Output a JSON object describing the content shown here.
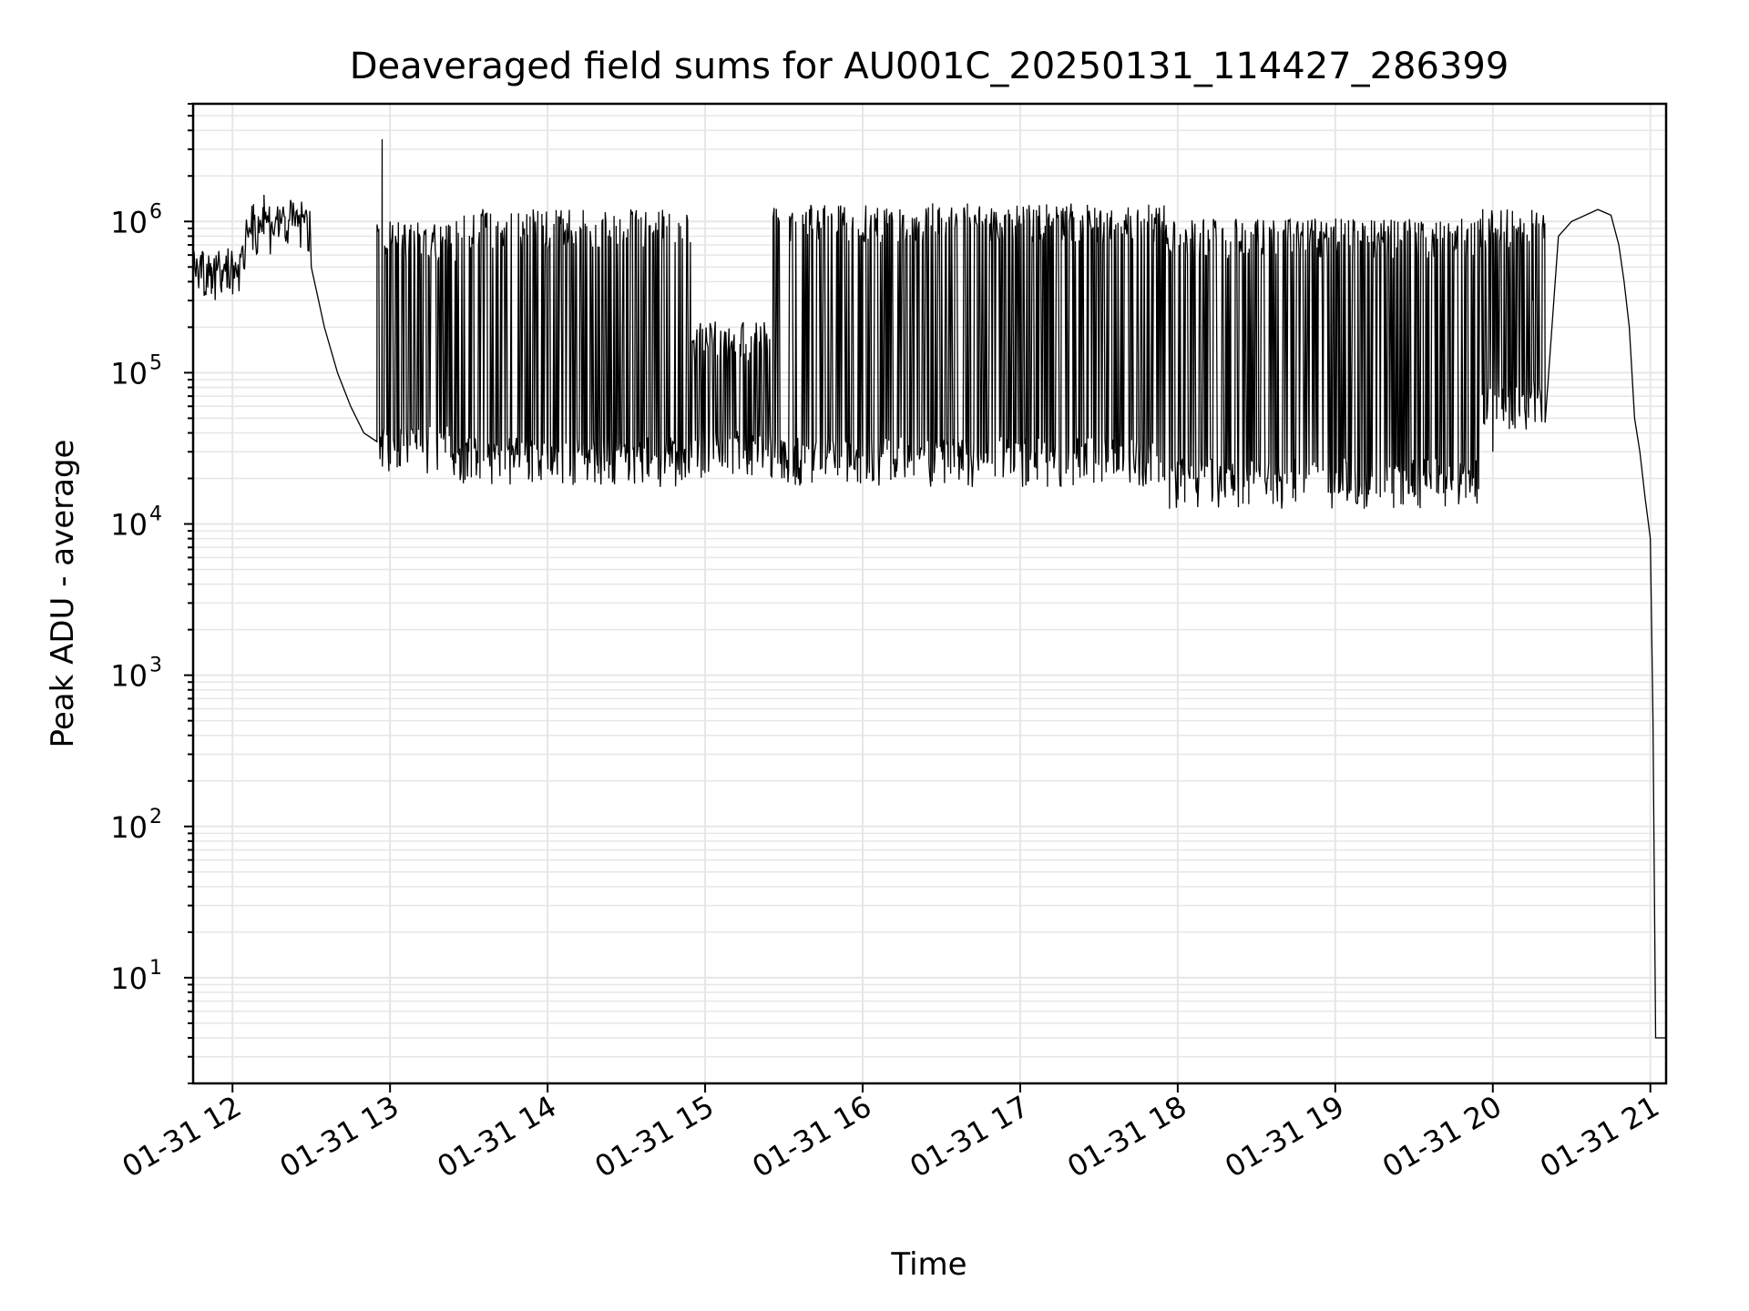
{
  "chart_data": {
    "type": "line",
    "title": "Deaveraged field sums for AU001C_20250131_114427_286399",
    "xlabel": "Time",
    "ylabel": "Peak ADU - average",
    "yscale": "log",
    "ylim": [
      2,
      6000000
    ],
    "xlim": [
      "2025-01-31 11:45",
      "2025-01-31 21:06"
    ],
    "x_ticks": [
      {
        "t": "2025-01-31 12:00",
        "label": "01-31 12"
      },
      {
        "t": "2025-01-31 13:00",
        "label": "01-31 13"
      },
      {
        "t": "2025-01-31 14:00",
        "label": "01-31 14"
      },
      {
        "t": "2025-01-31 15:00",
        "label": "01-31 15"
      },
      {
        "t": "2025-01-31 16:00",
        "label": "01-31 16"
      },
      {
        "t": "2025-01-31 17:00",
        "label": "01-31 17"
      },
      {
        "t": "2025-01-31 18:00",
        "label": "01-31 18"
      },
      {
        "t": "2025-01-31 19:00",
        "label": "01-31 19"
      },
      {
        "t": "2025-01-31 20:00",
        "label": "01-31 20"
      },
      {
        "t": "2025-01-31 21:00",
        "label": "01-31 21"
      }
    ],
    "y_ticks": [
      {
        "v": 10,
        "base": "10",
        "exp": "1"
      },
      {
        "v": 100,
        "base": "10",
        "exp": "2"
      },
      {
        "v": 1000,
        "base": "10",
        "exp": "3"
      },
      {
        "v": 10000,
        "base": "10",
        "exp": "4"
      },
      {
        "v": 100000,
        "base": "10",
        "exp": "5"
      },
      {
        "v": 1000000,
        "base": "10",
        "exp": "6"
      }
    ],
    "grid": true,
    "line_color": "#000000",
    "grid_color": "#e6e6e6",
    "series": [
      {
        "points": [
          [
            "2025-01-31 11:45",
            450000
          ],
          [
            "2025-01-31 11:48",
            600000
          ],
          [
            "2025-01-31 11:52",
            500000
          ],
          [
            "2025-01-31 11:56",
            480000
          ],
          [
            "2025-01-31 12:00",
            550000
          ],
          [
            "2025-01-31 12:05",
            800000
          ],
          [
            "2025-01-31 12:08",
            1300000
          ],
          [
            "2025-01-31 12:10",
            900000
          ],
          [
            "2025-01-31 12:12",
            1500000
          ],
          [
            "2025-01-31 12:15",
            1000000
          ],
          [
            "2025-01-31 12:18",
            1200000
          ],
          [
            "2025-01-31 12:20",
            800000
          ],
          [
            "2025-01-31 12:25",
            1100000
          ],
          [
            "2025-01-31 12:30",
            500000
          ],
          [
            "2025-01-31 12:35",
            200000
          ],
          [
            "2025-01-31 12:40",
            100000
          ],
          [
            "2025-01-31 12:45",
            60000
          ],
          [
            "2025-01-31 12:50",
            40000
          ],
          [
            "2025-01-31 12:55",
            35000
          ],
          [
            "2025-01-31 13:00",
            1000000
          ],
          [
            "2025-01-31 13:03",
            30000
          ],
          [
            "2025-01-31 13:30",
            30000
          ],
          [
            "2025-01-31 14:00",
            28000
          ],
          [
            "2025-01-31 14:30",
            30000
          ],
          [
            "2025-01-31 14:50",
            35000
          ],
          [
            "2025-01-31 15:00",
            30000
          ],
          [
            "2025-01-31 15:30",
            30000
          ],
          [
            "2025-01-31 16:00",
            28000
          ],
          [
            "2025-01-31 16:30",
            30000
          ],
          [
            "2025-01-31 17:00",
            30000
          ],
          [
            "2025-01-31 17:30",
            30000
          ],
          [
            "2025-01-31 18:00",
            25000
          ],
          [
            "2025-01-31 18:30",
            22000
          ],
          [
            "2025-01-31 19:00",
            22000
          ],
          [
            "2025-01-31 19:30",
            22000
          ],
          [
            "2025-01-31 20:00",
            30000
          ],
          [
            "2025-01-31 20:15",
            300000
          ],
          [
            "2025-01-31 20:25",
            800000
          ],
          [
            "2025-01-31 20:30",
            1000000
          ],
          [
            "2025-01-31 20:40",
            1200000
          ],
          [
            "2025-01-31 20:45",
            1100000
          ],
          [
            "2025-01-31 20:48",
            700000
          ],
          [
            "2025-01-31 20:50",
            400000
          ],
          [
            "2025-01-31 20:52",
            200000
          ],
          [
            "2025-01-31 20:54",
            50000
          ],
          [
            "2025-01-31 20:56",
            30000
          ],
          [
            "2025-01-31 20:58",
            15000
          ],
          [
            "2025-01-31 21:00",
            8000
          ],
          [
            "2025-01-31 21:01",
            500
          ],
          [
            "2025-01-31 21:02",
            4
          ],
          [
            "2025-01-31 21:06",
            4
          ]
        ],
        "oscillation": [
          {
            "from": "2025-01-31 12:55",
            "to": "2025-01-31 13:25",
            "high": 900000,
            "low": 30000
          },
          {
            "from": "2025-01-31 13:25",
            "to": "2025-01-31 14:55",
            "high": 1100000,
            "low": 25000
          },
          {
            "from": "2025-01-31 14:55",
            "to": "2025-01-31 15:25",
            "high": 200000,
            "low": 28000
          },
          {
            "from": "2025-01-31 15:25",
            "to": "2025-01-31 17:55",
            "high": 1200000,
            "low": 25000
          },
          {
            "from": "2025-01-31 17:55",
            "to": "2025-01-31 19:55",
            "high": 950000,
            "low": 18000
          },
          {
            "from": "2025-01-31 19:55",
            "to": "2025-01-31 20:20",
            "high": 1100000,
            "low": 60000
          }
        ],
        "peak": [
          "2025-01-31 12:57",
          3500000
        ]
      }
    ]
  }
}
